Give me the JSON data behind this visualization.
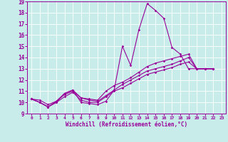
{
  "xlabel": "Windchill (Refroidissement éolien,°C)",
  "xlim": [
    -0.5,
    23.5
  ],
  "ylim": [
    9,
    19
  ],
  "yticks": [
    9,
    10,
    11,
    12,
    13,
    14,
    15,
    16,
    17,
    18,
    19
  ],
  "xticks": [
    0,
    1,
    2,
    3,
    4,
    5,
    6,
    7,
    8,
    9,
    10,
    11,
    12,
    13,
    14,
    15,
    16,
    17,
    18,
    19,
    20,
    21,
    22,
    23
  ],
  "background_color": "#c8ecea",
  "line_color": "#990099",
  "grid_color": "#ffffff",
  "series": [
    {
      "x": [
        0,
        1,
        2,
        3,
        4,
        5,
        6,
        7,
        8,
        9,
        10,
        11,
        12,
        13,
        14,
        15,
        16,
        17,
        18,
        19,
        20,
        21,
        22
      ],
      "y": [
        10.3,
        10.0,
        9.6,
        10.0,
        10.8,
        11.1,
        10.0,
        9.9,
        9.8,
        10.1,
        11.1,
        15.0,
        13.3,
        16.5,
        18.8,
        18.2,
        17.5,
        14.9,
        14.3,
        13.0,
        13.0,
        13.0,
        13.0
      ]
    },
    {
      "x": [
        0,
        1,
        2,
        3,
        4,
        5,
        6,
        7,
        8,
        9,
        10,
        11,
        12,
        13,
        14,
        15,
        16,
        17,
        18,
        19,
        20,
        21,
        22
      ],
      "y": [
        10.3,
        10.0,
        9.6,
        10.1,
        10.8,
        11.1,
        10.4,
        10.3,
        10.2,
        11.0,
        11.5,
        11.8,
        12.2,
        12.7,
        13.2,
        13.5,
        13.7,
        13.9,
        14.1,
        14.3,
        13.0,
        13.0,
        13.0
      ]
    },
    {
      "x": [
        0,
        1,
        2,
        3,
        4,
        5,
        6,
        7,
        8,
        9,
        10,
        11,
        12,
        13,
        14,
        15,
        16,
        17,
        18,
        19,
        20,
        21,
        22
      ],
      "y": [
        10.3,
        10.0,
        9.6,
        10.0,
        10.5,
        10.9,
        10.2,
        10.0,
        10.0,
        10.5,
        11.0,
        11.3,
        11.7,
        12.1,
        12.5,
        12.7,
        12.9,
        13.1,
        13.4,
        13.6,
        13.0,
        13.0,
        13.0
      ]
    },
    {
      "x": [
        0,
        1,
        2,
        3,
        4,
        5,
        6,
        7,
        8,
        9,
        10,
        11,
        12,
        13,
        14,
        15,
        16,
        17,
        18,
        19,
        20,
        21,
        22
      ],
      "y": [
        10.3,
        10.2,
        9.8,
        10.1,
        10.7,
        11.0,
        10.4,
        10.2,
        10.1,
        10.6,
        11.1,
        11.6,
        12.0,
        12.4,
        12.8,
        13.0,
        13.2,
        13.4,
        13.7,
        14.0,
        13.0,
        13.0,
        13.0
      ]
    }
  ]
}
